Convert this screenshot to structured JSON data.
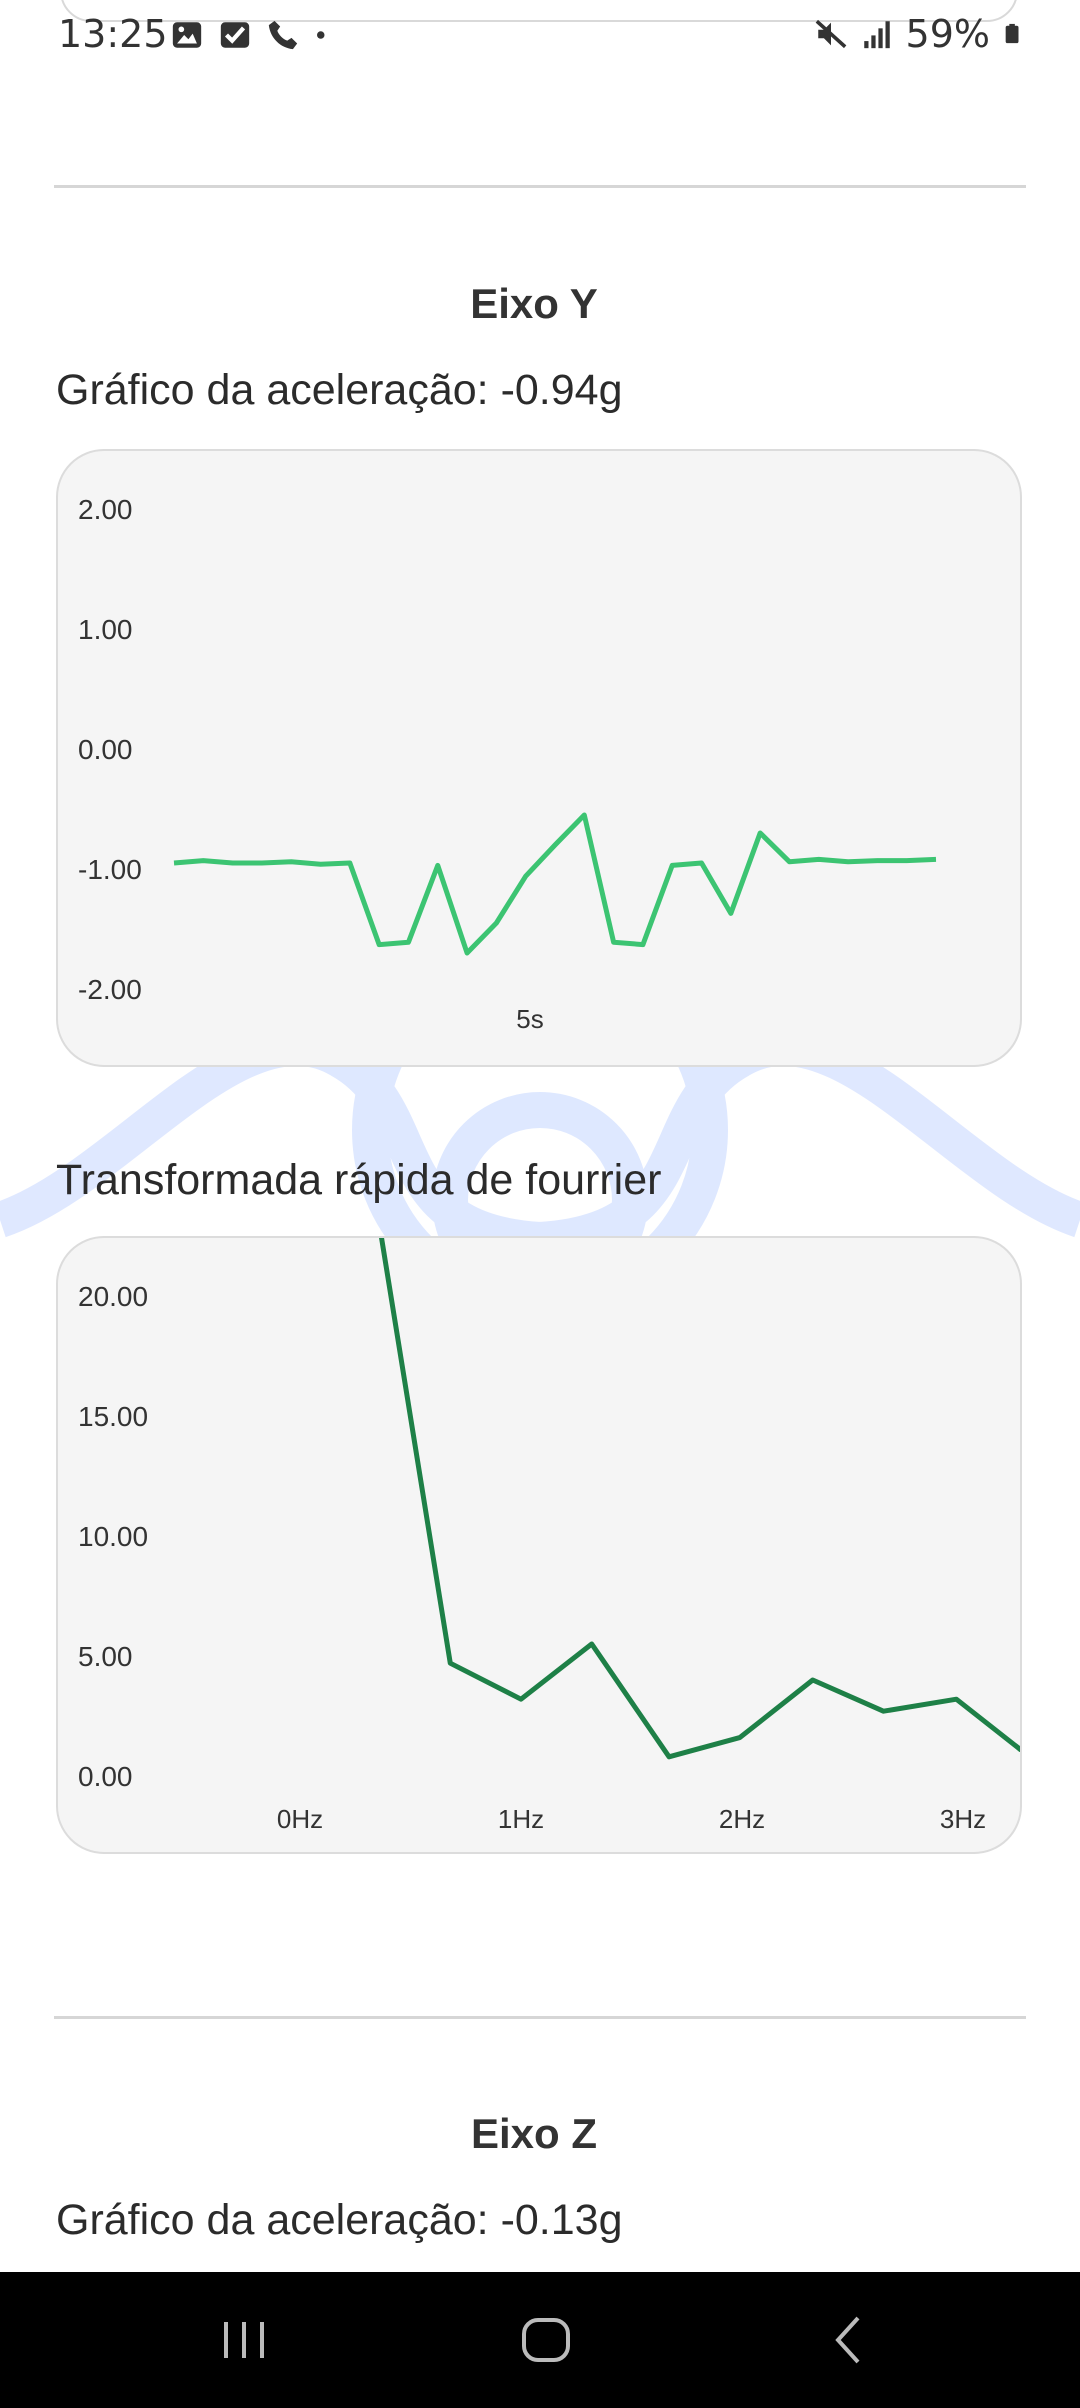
{
  "status_bar": {
    "time": "13:25",
    "battery": "59%",
    "left_icons": [
      "image-icon",
      "check-square-icon",
      "phone-icon",
      "dot-icon"
    ],
    "right_icons": [
      "mute-icon",
      "signal-icon",
      "battery-icon"
    ]
  },
  "section_y": {
    "title": "Eixo Y",
    "accel_label": "Gráfico da aceleração: -0.94g",
    "fft_label": "Transformada rápida de fourrier"
  },
  "section_z": {
    "title": "Eixo Z",
    "accel_label": "Gráfico da aceleração: -0.13g"
  },
  "colors": {
    "accel_line": "#3cc472",
    "fft_line": "#1e8047",
    "card_bg": "#f5f5f5",
    "watermark": "#dbe6ff"
  },
  "chart_data": [
    {
      "type": "line",
      "series": [
        {
          "values": [
            -0.95,
            -0.93,
            -0.95,
            -0.95,
            -0.94,
            -0.96,
            -0.95,
            -1.63,
            -1.61,
            -0.97,
            -1.7,
            -1.45,
            -1.06,
            -0.8,
            -0.55,
            -1.61,
            -1.63,
            -0.97,
            -0.95,
            -1.37,
            -0.7,
            -0.94,
            -0.92,
            -0.94,
            -0.93,
            -0.93,
            -0.92
          ]
        }
      ],
      "y_ticks": [
        "2.00",
        "1.00",
        "0.00",
        "-1.00",
        "-2.00"
      ],
      "x_ticks": [
        "5s"
      ],
      "ylim": [
        -2,
        2
      ]
    },
    {
      "type": "line",
      "series": [
        {
          "x": [
            0.35,
            0.68,
            1.0,
            1.32,
            1.67,
            1.99,
            2.32,
            2.64,
            2.97,
            3.26,
            3.3
          ],
          "values": [
            23.5,
            4.7,
            3.2,
            5.5,
            0.8,
            1.6,
            4.0,
            2.7,
            3.2,
            1.1,
            1.1
          ]
        }
      ],
      "y_ticks": [
        "20.00",
        "15.00",
        "10.00",
        "5.00",
        "0.00"
      ],
      "x_ticks": [
        "0Hz",
        "1Hz",
        "2Hz",
        "3Hz"
      ],
      "ylim": [
        0,
        20
      ]
    }
  ]
}
